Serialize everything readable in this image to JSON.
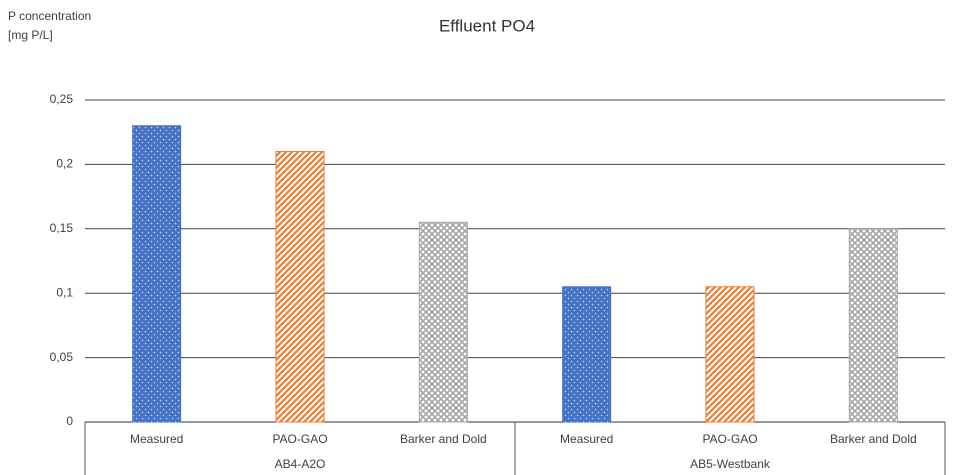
{
  "chart_data": {
    "type": "bar",
    "title": "Effluent PO4",
    "ylabel": [
      "P concentration",
      "[mg P/L]"
    ],
    "groups": [
      {
        "label": "AB4-A2O",
        "categories": [
          "Measured",
          "PAO-GAO",
          "Barker and Dold"
        ],
        "values": [
          0.23,
          0.21,
          0.155
        ]
      },
      {
        "label": "AB5-Westbank",
        "categories": [
          "Measured",
          "PAO-GAO",
          "Barker and Dold"
        ],
        "values": [
          0.105,
          0.105,
          0.15
        ]
      }
    ],
    "colors": [
      "#4472c4",
      "#ed7d31",
      "#a5a5a5"
    ],
    "patterns": [
      "dots",
      "stripes",
      "crosshatch"
    ],
    "ylim": [
      0,
      0.25
    ],
    "yticks": [
      0,
      {
        "value": 0.05,
        "label": "0,05"
      },
      {
        "value": 0.1,
        "label": "0,1"
      },
      {
        "value": 0.15,
        "label": "0,15"
      },
      {
        "value": 0.2,
        "label": "0,2"
      },
      {
        "value": 0.25,
        "label": "0,25"
      }
    ],
    "grid": true
  }
}
